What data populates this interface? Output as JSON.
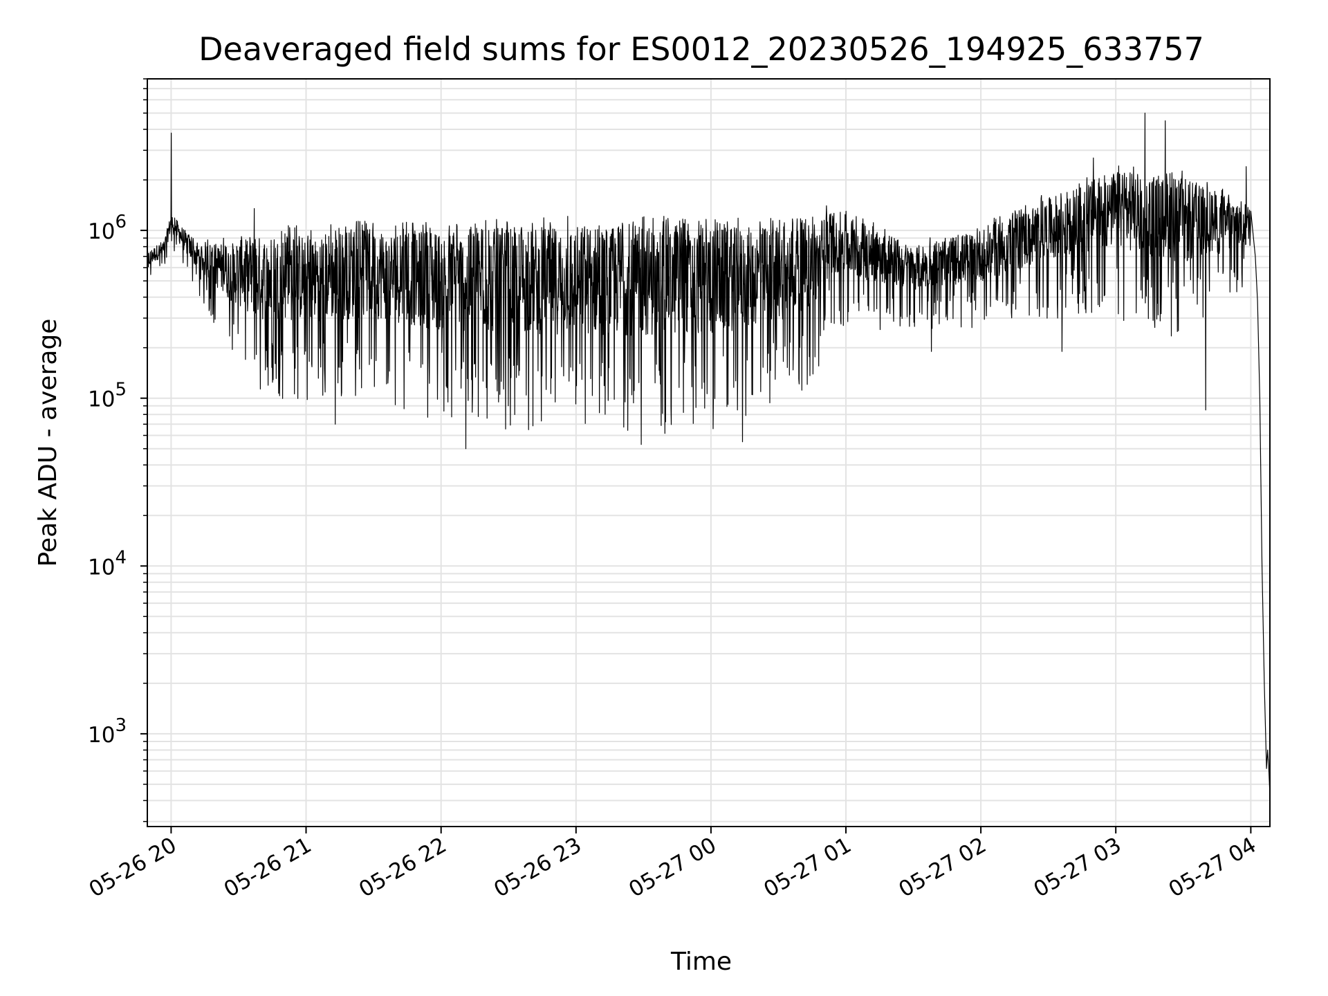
{
  "chart_data": {
    "type": "line",
    "title": "Deaveraged field sums for ES0012_20230526_194925_633757",
    "xlabel": "Time",
    "ylabel": "Peak ADU - average",
    "yscale": "log",
    "ylim": [
      280,
      8000000
    ],
    "xlim": [
      "2023-05-26 19:49:25",
      "2023-05-27 04:08:30"
    ],
    "grid": true,
    "line_color": "#000000",
    "grid_color": "#e3e3e3",
    "x_ticks": [
      {
        "t": "2023-05-26 20:00",
        "label": "05-26 20"
      },
      {
        "t": "2023-05-26 21:00",
        "label": "05-26 21"
      },
      {
        "t": "2023-05-26 22:00",
        "label": "05-26 22"
      },
      {
        "t": "2023-05-26 23:00",
        "label": "05-26 23"
      },
      {
        "t": "2023-05-27 00:00",
        "label": "05-27 00"
      },
      {
        "t": "2023-05-27 01:00",
        "label": "05-27 01"
      },
      {
        "t": "2023-05-27 02:00",
        "label": "05-27 02"
      },
      {
        "t": "2023-05-27 03:00",
        "label": "05-27 03"
      },
      {
        "t": "2023-05-27 04:00",
        "label": "05-27 04"
      }
    ],
    "y_ticks": [
      {
        "value": 1000,
        "base": "10",
        "exp": "3"
      },
      {
        "value": 10000,
        "base": "10",
        "exp": "4"
      },
      {
        "value": 100000,
        "base": "10",
        "exp": "5"
      },
      {
        "value": 1000000,
        "base": "10",
        "exp": "6"
      }
    ],
    "envelope": [
      {
        "t": "2023-05-26 19:49",
        "low": 480000,
        "high": 760000
      },
      {
        "t": "2023-05-26 19:57",
        "low": 600000,
        "high": 900000
      },
      {
        "t": "2023-05-26 20:00",
        "low": 800000,
        "high": 1300000
      },
      {
        "t": "2023-05-26 20:10",
        "low": 450000,
        "high": 900000
      },
      {
        "t": "2023-05-26 20:25",
        "low": 200000,
        "high": 900000
      },
      {
        "t": "2023-05-26 20:40",
        "low": 100000,
        "high": 1050000
      },
      {
        "t": "2023-05-26 21:00",
        "low": 95000,
        "high": 1100000
      },
      {
        "t": "2023-05-26 21:30",
        "low": 100000,
        "high": 1150000
      },
      {
        "t": "2023-05-26 22:00",
        "low": 72000,
        "high": 1150000
      },
      {
        "t": "2023-05-26 22:30",
        "low": 65000,
        "high": 1200000
      },
      {
        "t": "2023-05-26 23:00",
        "low": 62000,
        "high": 1250000
      },
      {
        "t": "2023-05-26 23:30",
        "low": 60000,
        "high": 1250000
      },
      {
        "t": "2023-05-27 00:00",
        "low": 62000,
        "high": 1200000
      },
      {
        "t": "2023-05-27 00:30",
        "low": 90000,
        "high": 1200000
      },
      {
        "t": "2023-05-27 00:48",
        "low": 130000,
        "high": 1300000
      },
      {
        "t": "2023-05-27 00:53",
        "low": 250000,
        "high": 1500000
      },
      {
        "t": "2023-05-27 01:30",
        "low": 260000,
        "high": 850000
      },
      {
        "t": "2023-05-27 02:00",
        "low": 260000,
        "high": 1100000
      },
      {
        "t": "2023-05-27 02:30",
        "low": 300000,
        "high": 1700000
      },
      {
        "t": "2023-05-27 03:00",
        "low": 300000,
        "high": 2500000
      },
      {
        "t": "2023-05-27 03:30",
        "low": 220000,
        "high": 2300000
      },
      {
        "t": "2023-05-27 04:00",
        "low": 480000,
        "high": 1500000
      }
    ],
    "spikes": [
      {
        "t": "2023-05-26 20:00",
        "value": 3800000
      },
      {
        "t": "2023-05-26 20:37",
        "value": 1350000
      },
      {
        "t": "2023-05-26 21:13",
        "value": 70000
      },
      {
        "t": "2023-05-26 22:11",
        "value": 50000
      },
      {
        "t": "2023-05-26 23:29",
        "value": 53000
      },
      {
        "t": "2023-05-27 00:14",
        "value": 55000
      },
      {
        "t": "2023-05-27 01:38",
        "value": 190000
      },
      {
        "t": "2023-05-27 02:36",
        "value": 190000
      },
      {
        "t": "2023-05-27 02:50",
        "value": 2700000
      },
      {
        "t": "2023-05-27 03:13",
        "value": 5000000
      },
      {
        "t": "2023-05-27 03:22",
        "value": 4500000
      },
      {
        "t": "2023-05-27 03:40",
        "value": 85000
      },
      {
        "t": "2023-05-27 03:58",
        "value": 2400000
      }
    ],
    "tail": [
      {
        "t": "2023-05-27 04:00",
        "value": 1300000
      },
      {
        "t": "2023-05-27 04:02",
        "value": 700000
      },
      {
        "t": "2023-05-27 04:03",
        "value": 380000
      },
      {
        "t": "2023-05-27 04:04",
        "value": 100000
      },
      {
        "t": "2023-05-27 04:05",
        "value": 10000
      },
      {
        "t": "2023-05-27 04:06",
        "value": 2000
      },
      {
        "t": "2023-05-27 04:07",
        "value": 620
      },
      {
        "t": "2023-05-27 04:07:30",
        "value": 800
      },
      {
        "t": "2023-05-27 04:08",
        "value": 620
      },
      {
        "t": "2023-05-27 04:08:30",
        "value": 430
      }
    ]
  }
}
